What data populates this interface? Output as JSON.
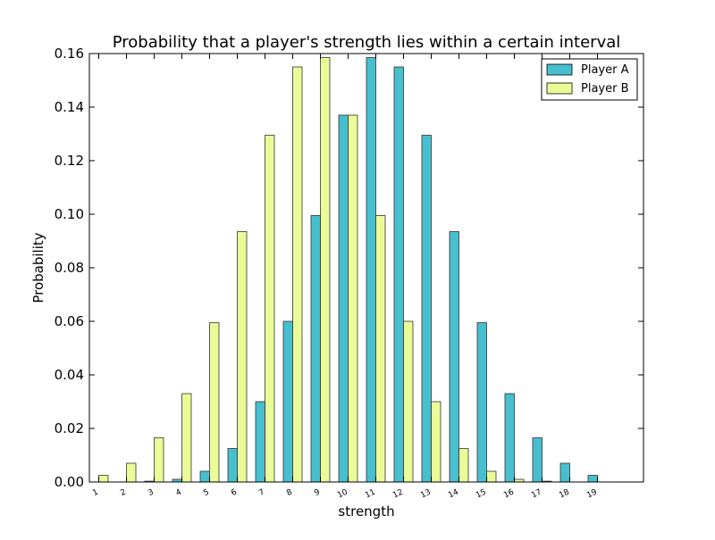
{
  "chart_data": {
    "type": "bar",
    "title": "Probability that a player's strength lies within a certain interval",
    "xlabel": "strength",
    "ylabel": "Probability",
    "categories": [
      "1",
      "2",
      "3",
      "4",
      "5",
      "6",
      "7",
      "8",
      "9",
      "10",
      "11",
      "12",
      "13",
      "14",
      "15",
      "16",
      "17",
      "18",
      "19"
    ],
    "ylim": [
      0,
      0.16
    ],
    "yticks": [
      "0.00",
      "0.02",
      "0.04",
      "0.06",
      "0.08",
      "0.10",
      "0.12",
      "0.14",
      "0.16"
    ],
    "grid": false,
    "legend_position": "top-right",
    "series": [
      {
        "name": "Player A",
        "color": "#48bfcf",
        "values": [
          0.0,
          0.0,
          0.0003,
          0.001,
          0.004,
          0.0125,
          0.03,
          0.06,
          0.0995,
          0.137,
          0.1585,
          0.155,
          0.1295,
          0.0935,
          0.0595,
          0.033,
          0.0165,
          0.007,
          0.0025
        ]
      },
      {
        "name": "Player B",
        "color": "#ebfb97",
        "values": [
          0.0025,
          0.007,
          0.0165,
          0.033,
          0.0595,
          0.0935,
          0.1295,
          0.155,
          0.1585,
          0.137,
          0.0995,
          0.06,
          0.03,
          0.0125,
          0.004,
          0.001,
          0.0003,
          0.0,
          0.0
        ]
      }
    ]
  }
}
